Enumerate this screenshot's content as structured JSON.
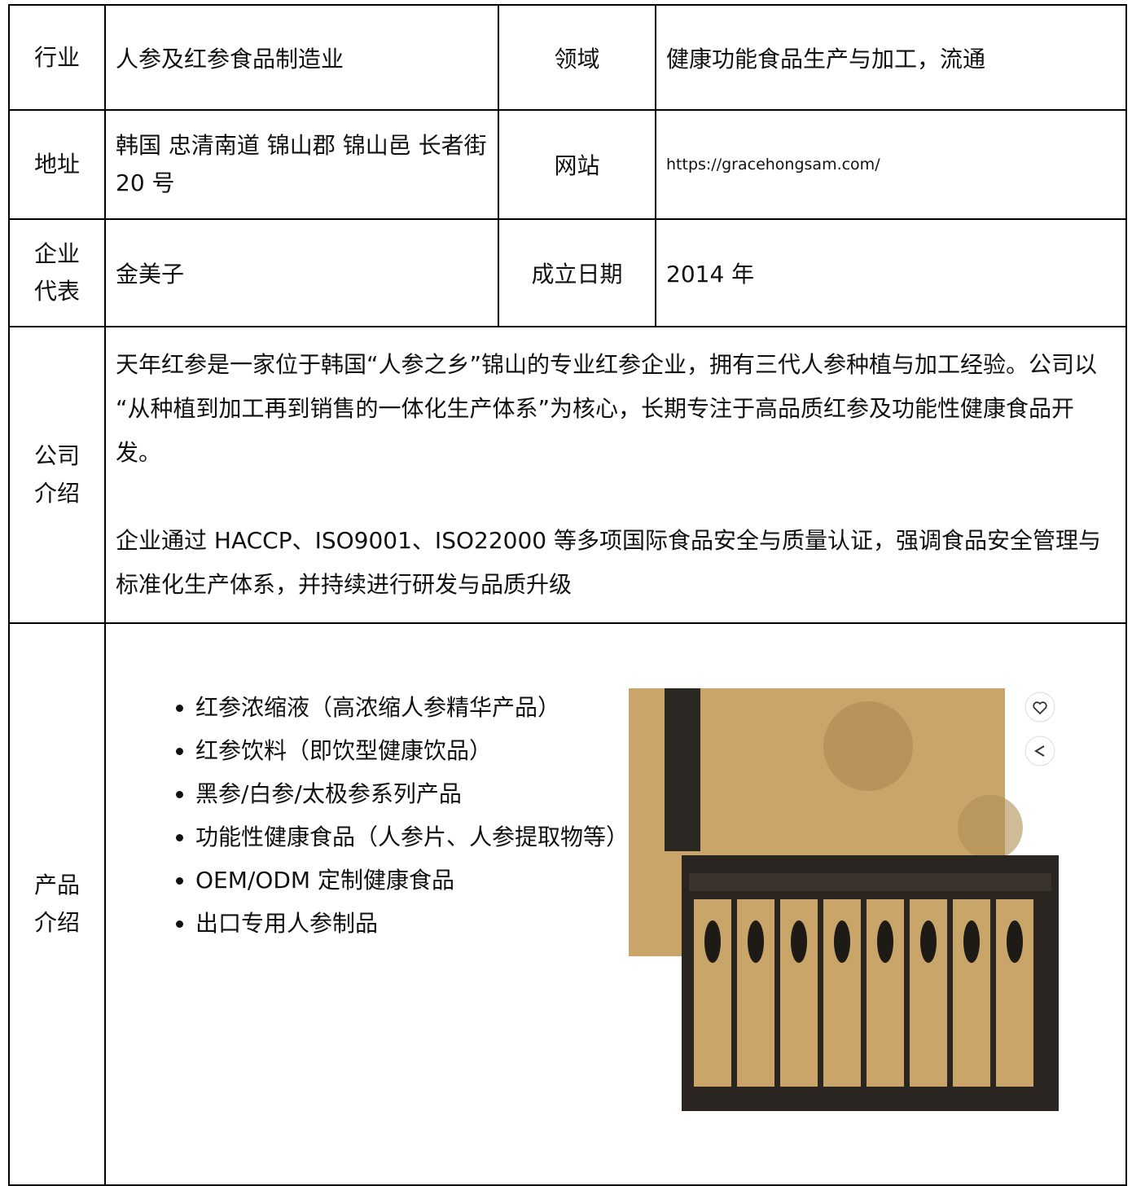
{
  "table": {
    "rows": [
      [
        "行业",
        "人参及红参食品制造业",
        "领域",
        "健康功能食品生产与加工，流通"
      ],
      [
        "地址",
        "韩国 忠清南道 锦山郡 锦山邑 长者街 20 号",
        "网站",
        "https://gracehongsam.com/"
      ],
      [
        "企业代表",
        "金美子",
        "成立日期",
        "2014 年"
      ]
    ],
    "intro": {
      "label": "公司介绍",
      "paragraphs": [
        "天年红参是一家位于韩国“人参之乡”锦山的专业红参企业，拥有三代人参种植与加工经验。公司以“从种植到加工再到销售的一体化生产体系”为核心，长期专注于高品质红参及功能性健康食品开发。",
        "企业通过 HACCP、ISO9001、ISO22000 等多项国际食品安全与质量认证，强调食品安全管理与标准化生产体系，并持续进行研发与品质升级"
      ]
    },
    "products": {
      "label": "产品介绍",
      "items": [
        "红参浓缩液（高浓缩人参精华产品）",
        "红参饮料（即饮型健康饮品）",
        "黑参/白参/太极参系列产品",
        "功能性健康食品（人参片、人参提取物等）",
        "OEM/ODM 定制健康食品",
        "出口专用人参制品"
      ]
    }
  }
}
